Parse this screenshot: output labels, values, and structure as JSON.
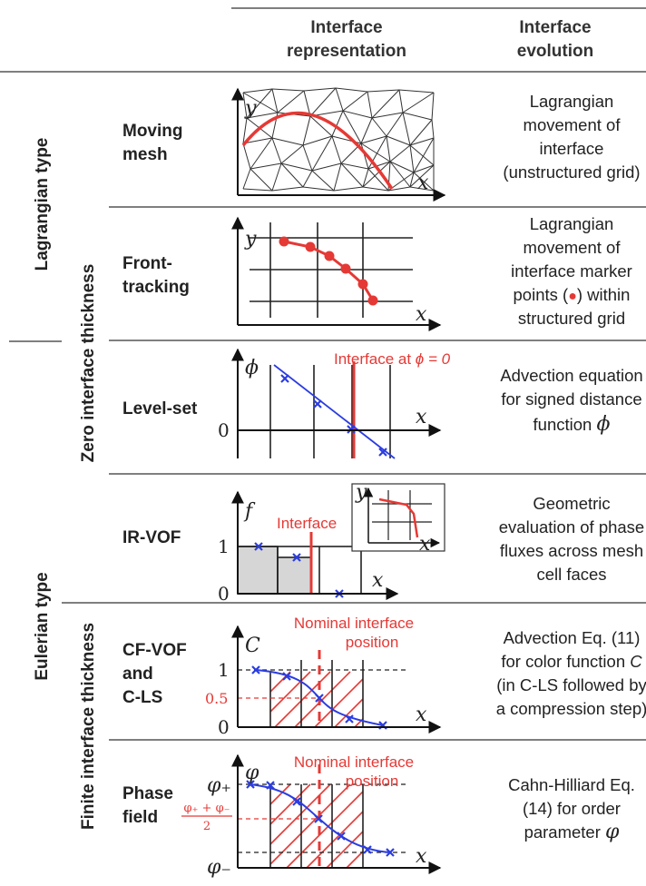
{
  "header": {
    "col_representation": [
      "Interface",
      "representation"
    ],
    "col_evolution": [
      "Interface",
      "evolution"
    ]
  },
  "groups": {
    "lagrangian_type": "Lagrangian type",
    "eulerian_type": "Eulerian type",
    "zero_thickness": "Zero interface thickness",
    "finite_thickness": "Finite interface thickness"
  },
  "rows": [
    {
      "id": "moving-mesh",
      "label": [
        "Moving",
        "mesh"
      ],
      "evolution": [
        "Lagrangian",
        "movement of",
        "interface",
        "(unstructured grid)"
      ],
      "axes": {
        "x": "x",
        "y": "y"
      }
    },
    {
      "id": "front-tracking",
      "label": [
        "Front-",
        "tracking"
      ],
      "evolution": [
        "Lagrangian",
        "movement of",
        "interface marker",
        "points (",
        ") within",
        "structured grid"
      ],
      "axes": {
        "x": "x",
        "y": "y"
      }
    },
    {
      "id": "level-set",
      "label": [
        "Level-set"
      ],
      "evolution": [
        "Advection equation",
        "for signed distance",
        "function "
      ],
      "evolution_symbol": "ϕ",
      "axes": {
        "x": "x",
        "y": "ϕ",
        "zero": "0"
      },
      "annotation": "Interface at ",
      "annotation_math": "ϕ = 0"
    },
    {
      "id": "ir-vof",
      "label": [
        "IR-VOF"
      ],
      "evolution": [
        "Geometric",
        "evaluation of phase",
        "fluxes across mesh",
        "cell faces"
      ],
      "axes": {
        "x": "x",
        "y": "f",
        "one": "1",
        "zero": "0",
        "inset_x": "x",
        "inset_y": "y"
      },
      "annotation": "Interface"
    },
    {
      "id": "cf-vof",
      "label": [
        "CF-VOF",
        "and",
        "C-LS"
      ],
      "evolution": [
        "Advection Eq. (11)",
        "for color function ",
        "(in C-LS followed by",
        "a compression step)"
      ],
      "evolution_symbol": "C",
      "axes": {
        "x": "x",
        "y": "C",
        "one": "1",
        "half": "0.5",
        "zero": "0"
      },
      "annotation": [
        "Nominal interface",
        "position"
      ]
    },
    {
      "id": "phase-field",
      "label": [
        "Phase",
        "field"
      ],
      "evolution": [
        "Cahn-Hilliard Eq.",
        "(14) for order",
        "parameter "
      ],
      "evolution_symbol": "φ",
      "axes": {
        "x": "x",
        "y": "φ",
        "plus": "φ₊",
        "minus": "φ₋",
        "mid_num": "φ₊ + φ₋",
        "mid_den": "2"
      },
      "annotation": [
        "Nominal interface",
        "position"
      ]
    }
  ]
}
